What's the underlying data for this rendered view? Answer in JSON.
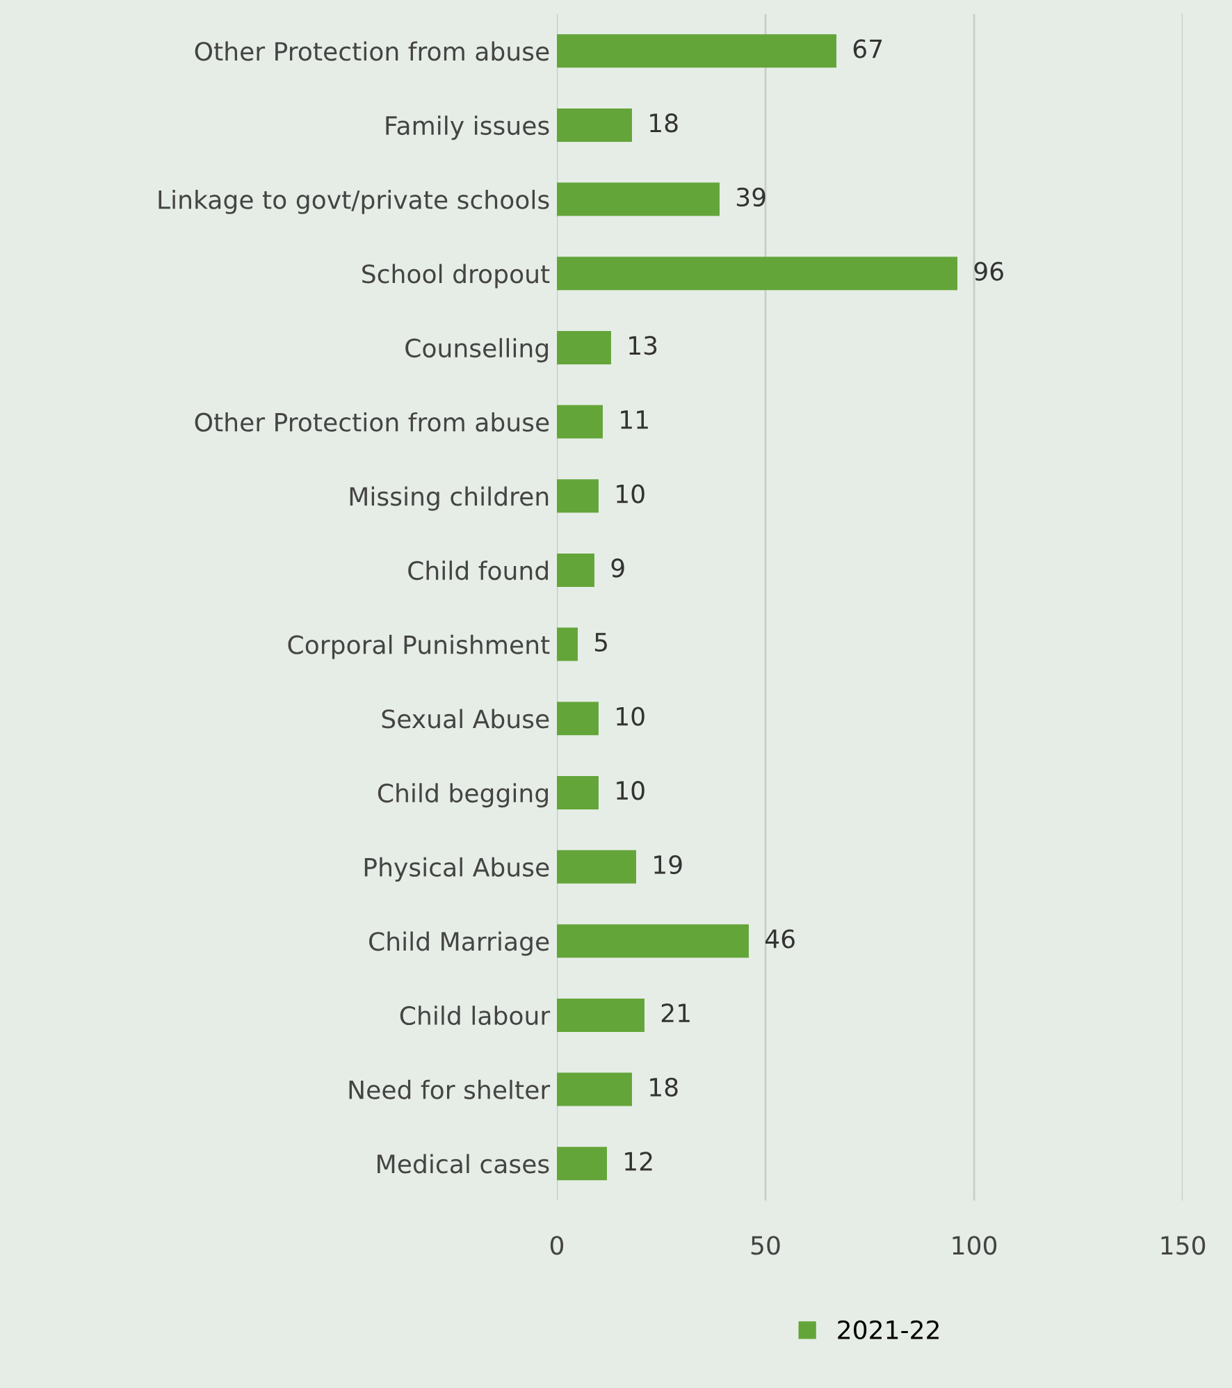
{
  "chart_data": {
    "type": "bar",
    "orientation": "horizontal",
    "categories": [
      "Other Protection from abuse",
      "Family issues",
      "Linkage to govt/private schools",
      "School dropout",
      "Counselling",
      "Other Protection from abuse",
      "Missing children",
      "Child found",
      "Corporal Punishment",
      "Sexual Abuse",
      "Child begging",
      "Physical Abuse",
      "Child Marriage",
      "Child labour",
      "Need for shelter",
      "Medical cases"
    ],
    "series": [
      {
        "name": "2021-22",
        "color": "#64a53a",
        "values": [
          67,
          18,
          39,
          96,
          13,
          11,
          10,
          9,
          5,
          10,
          10,
          19,
          46,
          21,
          18,
          12
        ]
      }
    ],
    "xlim": [
      0,
      150
    ],
    "xticks": [
      0,
      50,
      100,
      150
    ],
    "grid": "x",
    "legend": "bottom",
    "data_labels": true
  }
}
